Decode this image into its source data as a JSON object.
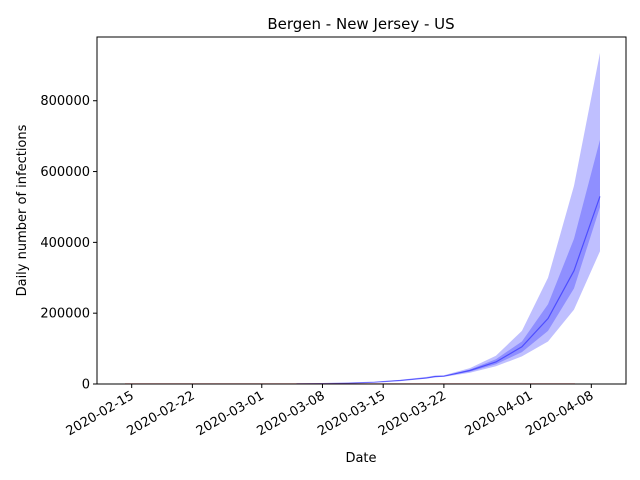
{
  "chart_data": {
    "type": "area",
    "title": "Bergen - New Jersey - US",
    "xlabel": "Date",
    "ylabel": "Daily number of infections",
    "xlim": [
      "2020-02-11",
      "2020-04-12"
    ],
    "ylim": [
      0,
      980000
    ],
    "x_ticks": [
      "2020-02-15",
      "2020-02-22",
      "2020-03-01",
      "2020-03-08",
      "2020-03-15",
      "2020-03-22",
      "2020-04-01",
      "2020-04-08"
    ],
    "y_ticks": [
      0,
      200000,
      400000,
      600000,
      800000
    ],
    "y_tick_labels": [
      "0",
      "200000",
      "400000",
      "600000",
      "800000"
    ],
    "grid": false,
    "colors": {
      "band": "#0000ff",
      "line": "#0000ff",
      "observed": "#ff0000"
    },
    "series": [
      {
        "x": [
          "2020-03-05",
          "2020-03-08",
          "2020-03-11",
          "2020-03-14",
          "2020-03-17",
          "2020-03-20",
          "2020-03-21",
          "2020-03-22",
          "2020-03-25",
          "2020-03-28",
          "2020-03-31",
          "2020-04-03",
          "2020-04-06",
          "2020-04-09"
        ],
        "mean": [
          300,
          1000,
          2500,
          5000,
          10000,
          17000,
          21000,
          22000,
          38000,
          62000,
          105000,
          185000,
          320000,
          530000
        ],
        "inner_lower": [
          300,
          900,
          2300,
          4700,
          9500,
          16500,
          20000,
          21500,
          35000,
          56000,
          90000,
          150000,
          270000,
          500000
        ],
        "inner_upper": [
          300,
          1100,
          2700,
          5400,
          11000,
          18000,
          23000,
          23000,
          41000,
          70000,
          120000,
          225000,
          410000,
          690000
        ],
        "outer_lower": [
          300,
          800,
          2000,
          4300,
          8800,
          15500,
          19000,
          20000,
          32000,
          50000,
          78000,
          120000,
          210000,
          375000
        ],
        "outer_upper": [
          300,
          1200,
          3000,
          6000,
          12000,
          20000,
          24000,
          24500,
          45000,
          80000,
          150000,
          300000,
          560000,
          935000
        ]
      }
    ]
  }
}
